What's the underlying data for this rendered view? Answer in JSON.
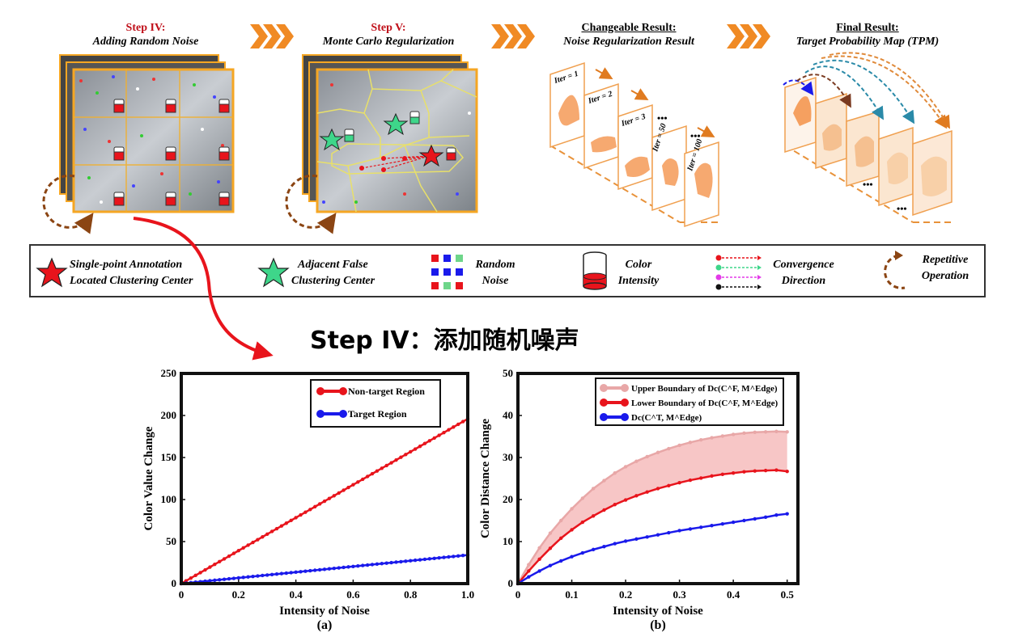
{
  "steps": {
    "step4": {
      "label": "Step IV:",
      "subtitle": "Adding Random Noise"
    },
    "step5": {
      "label": "Step V:",
      "subtitle": "Monte Carlo Regularization"
    },
    "changeable": {
      "label": "Changeable Result:",
      "subtitle": "Noise Regularization Result"
    },
    "final": {
      "label": "Final Result:",
      "subtitle": "Target Probability Map (TPM)"
    }
  },
  "iterations": [
    "Iter = 1",
    "Iter = 2",
    "Iter = 3",
    "Iter = 50",
    "Iter = 100"
  ],
  "ellipsis": "•••",
  "legend": {
    "annotation": [
      "Single-point  Annotation",
      "Located Clustering Center"
    ],
    "false_center": [
      "Adjacent False",
      "Clustering Center"
    ],
    "noise": [
      "Random",
      "Noise"
    ],
    "color_intensity": [
      "Color",
      "Intensity"
    ],
    "convergence": [
      "Convergence",
      "Direction"
    ],
    "repetitive": [
      "Repetitive",
      "Operation"
    ]
  },
  "subheading": "Step IV：添加随机噪声",
  "colors": {
    "red": "#e8141c",
    "blue": "#1a1aeb",
    "pink": "#e8a7a7",
    "orange": "#f0a050",
    "green": "#3ed68a",
    "brown": "#8b4513"
  },
  "chart_data": [
    {
      "type": "line",
      "panel_label": "(a)",
      "xlabel": "Intensity of Noise",
      "ylabel": "Color Value Change",
      "xlim": [
        0,
        1.0
      ],
      "ylim": [
        0,
        250
      ],
      "xticks": [
        "0",
        "0.2",
        "0.4",
        "0.6",
        "0.8",
        "1.0"
      ],
      "yticks": [
        "0",
        "50",
        "100",
        "150",
        "200",
        "250"
      ],
      "legend_position": "top-right",
      "series": [
        {
          "name": "Non-target Region",
          "color": "#e8141c",
          "x_start": 0,
          "x_end": 1.0,
          "y_start": 0,
          "y_end": 196,
          "points": 60
        },
        {
          "name": "Target Region",
          "color": "#1a1aeb",
          "x_start": 0,
          "x_end": 1.0,
          "y_start": 0,
          "y_end": 34,
          "points": 60
        }
      ]
    },
    {
      "type": "line",
      "panel_label": "(b)",
      "xlabel": "Intensity of Noise",
      "ylabel": "Color Distance Change",
      "xlim": [
        0,
        0.52
      ],
      "ylim": [
        0,
        50
      ],
      "xticks": [
        "0",
        "0.1",
        "0.2",
        "0.3",
        "0.4",
        "0.5"
      ],
      "yticks": [
        "0",
        "10",
        "20",
        "30",
        "40",
        "50"
      ],
      "legend_position": "top-right",
      "series": [
        {
          "name": "Upper Boundary of Dc(C^F, M^Edge)",
          "color": "#e8a7a7",
          "x": [
            0,
            0.02,
            0.04,
            0.06,
            0.08,
            0.1,
            0.12,
            0.14,
            0.16,
            0.18,
            0.2,
            0.22,
            0.24,
            0.26,
            0.28,
            0.3,
            0.32,
            0.34,
            0.36,
            0.38,
            0.4,
            0.42,
            0.44,
            0.46,
            0.48,
            0.5
          ],
          "y": [
            0,
            4.5,
            8.5,
            12,
            15,
            17.8,
            20.3,
            22.6,
            24.5,
            26.3,
            27.8,
            29.1,
            30.2,
            31.2,
            32.1,
            32.9,
            33.6,
            34.2,
            34.7,
            35.1,
            35.5,
            35.8,
            36,
            36.1,
            36.2,
            36.1
          ]
        },
        {
          "name": "Lower Boundary of Dc(C^F, M^Edge)",
          "color": "#e8141c",
          "x": [
            0,
            0.02,
            0.04,
            0.06,
            0.08,
            0.1,
            0.12,
            0.14,
            0.16,
            0.18,
            0.2,
            0.22,
            0.24,
            0.26,
            0.28,
            0.3,
            0.32,
            0.34,
            0.36,
            0.38,
            0.4,
            0.42,
            0.44,
            0.46,
            0.48,
            0.5
          ],
          "y": [
            0,
            3,
            5.8,
            8.4,
            10.8,
            12.8,
            14.6,
            16.1,
            17.5,
            18.8,
            19.9,
            20.9,
            21.8,
            22.6,
            23.3,
            24,
            24.6,
            25.1,
            25.6,
            26,
            26.3,
            26.6,
            26.8,
            26.9,
            27,
            26.7
          ]
        },
        {
          "name": "Dc(C^T, M^Edge)",
          "color": "#1a1aeb",
          "x": [
            0,
            0.02,
            0.04,
            0.06,
            0.08,
            0.1,
            0.12,
            0.14,
            0.16,
            0.18,
            0.2,
            0.22,
            0.24,
            0.26,
            0.28,
            0.3,
            0.32,
            0.34,
            0.36,
            0.38,
            0.4,
            0.42,
            0.44,
            0.46,
            0.48,
            0.5
          ],
          "y": [
            0,
            1.6,
            3,
            4.3,
            5.4,
            6.4,
            7.3,
            8.1,
            8.8,
            9.5,
            10.1,
            10.6,
            11.1,
            11.6,
            12.1,
            12.6,
            13,
            13.4,
            13.8,
            14.2,
            14.6,
            15,
            15.4,
            15.8,
            16.3,
            16.6
          ]
        }
      ],
      "legend_labels": [
        "Upper Boundary of",
        "Lower Boundary of",
        ""
      ],
      "legend_math": [
        "Dc(C^F, M^Edge)",
        "Dc(C^F, M^Edge)",
        "Dc(C^T, M^Edge)"
      ]
    }
  ]
}
